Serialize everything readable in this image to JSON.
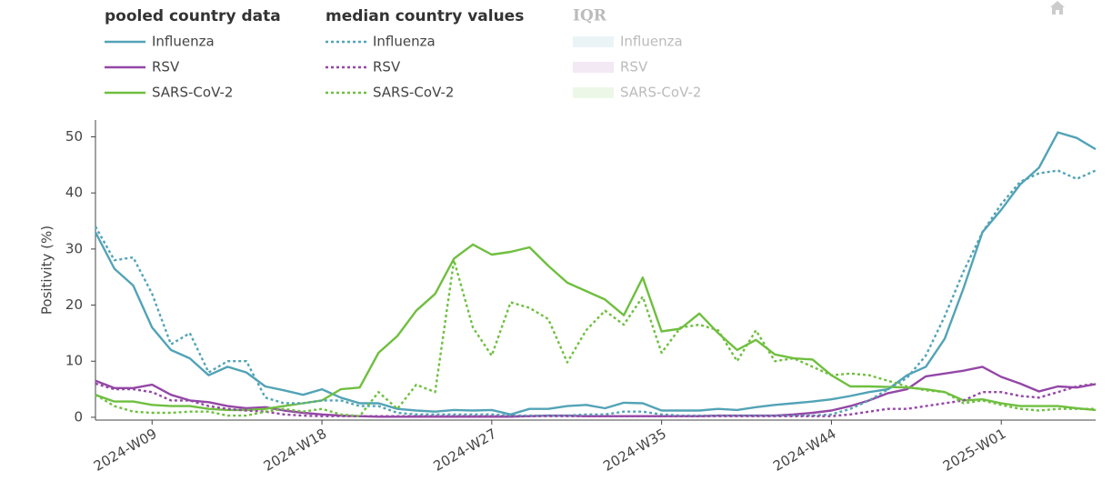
{
  "chart_data": {
    "type": "line",
    "ylabel": "Positivity (%)",
    "ylim": [
      -0.5,
      53
    ],
    "yticks": [
      0,
      10,
      20,
      30,
      40,
      50
    ],
    "grid": false,
    "categories": [
      null,
      null,
      null,
      "2024-W09",
      null,
      null,
      null,
      null,
      null,
      null,
      null,
      null,
      "2024-W18",
      null,
      null,
      null,
      null,
      null,
      null,
      null,
      null,
      "2024-W27",
      null,
      null,
      null,
      null,
      null,
      null,
      null,
      null,
      "2024-W35",
      null,
      null,
      null,
      null,
      null,
      null,
      null,
      null,
      "2024-W44",
      null,
      null,
      null,
      null,
      null,
      null,
      null,
      null,
      "2025-W01",
      null,
      null,
      null,
      null,
      null
    ],
    "groups": [
      {
        "title": "pooled country data",
        "dash": "solid",
        "series": [
          {
            "name": "Influenza",
            "color": "#52a3b6",
            "values": [
              33,
              26.5,
              23.5,
              16,
              12,
              10.5,
              7.5,
              9,
              8,
              5.5,
              4.8,
              4,
              5,
              3.5,
              2.5,
              2.5,
              1.5,
              1.2,
              1,
              1.3,
              1.2,
              1.3,
              0.5,
              1.5,
              1.5,
              2,
              2.2,
              1.6,
              2.6,
              2.5,
              1.2,
              1.2,
              1.2,
              1.5,
              1.3,
              1.8,
              2.2,
              2.5,
              2.8,
              3.2,
              3.8,
              4.5,
              5,
              7.5,
              9,
              14,
              23,
              33,
              37,
              41.5,
              44.5,
              50.8,
              49.8,
              47.8
            ]
          },
          {
            "name": "RSV",
            "color": "#9447a6",
            "values": [
              6.5,
              5.2,
              5.2,
              5.8,
              4,
              3,
              2.7,
              2,
              1.6,
              1.8,
              1.2,
              0.8,
              0.5,
              0.3,
              0.2,
              0.1,
              0.1,
              0.1,
              0.1,
              0.1,
              0.1,
              0.1,
              0.1,
              0.2,
              0.3,
              0.3,
              0.2,
              0.2,
              0.2,
              0.2,
              0.2,
              0.2,
              0.2,
              0.3,
              0.3,
              0.3,
              0.3,
              0.5,
              0.8,
              1.2,
              2,
              3,
              4.3,
              5,
              7.3,
              7.8,
              8.3,
              9,
              7.2,
              6,
              4.6,
              5.5,
              5.3,
              5.9
            ]
          },
          {
            "name": "SARS-CoV-2",
            "color": "#6fbf3f",
            "values": [
              4,
              2.8,
              2.8,
              2.2,
              2,
              2,
              1.5,
              1.3,
              1.3,
              1.5,
              2,
              2.5,
              3,
              5,
              5.3,
              11.5,
              14.5,
              19,
              22,
              28.3,
              30.8,
              29,
              29.5,
              30.3,
              27,
              24,
              22.5,
              21,
              18.2,
              24.9,
              15.3,
              15.8,
              18.5,
              15,
              12,
              13.8,
              11.2,
              10.5,
              10.3,
              7.5,
              5.5,
              5.5,
              5.4,
              5.3,
              5,
              4.5,
              3,
              3.2,
              2.5,
              2,
              2,
              2,
              1.6,
              1.3
            ]
          }
        ]
      },
      {
        "title": "median country values",
        "dash": "dot",
        "series": [
          {
            "name": "Influenza",
            "color": "#52a3b6",
            "values": [
              34,
              28,
              28.5,
              22,
              13,
              15,
              8,
              10,
              10,
              3.5,
              2.5,
              2.5,
              3,
              3,
              2,
              2,
              0.8,
              0.5,
              0.5,
              0.5,
              0.5,
              0.5,
              0.3,
              0.3,
              0.3,
              0.3,
              0.5,
              0.5,
              1,
              1,
              0.5,
              0.3,
              0.3,
              0.3,
              0.3,
              0.3,
              0.3,
              0.3,
              0.3,
              0.5,
              1.5,
              3,
              5,
              7,
              11,
              18,
              26,
              33,
              38,
              42,
              43.5,
              44,
              42.5,
              44
            ]
          },
          {
            "name": "RSV",
            "color": "#9447a6",
            "values": [
              6,
              5,
              5,
              4.5,
              3,
              3,
              2,
              1.5,
              1.2,
              1,
              0.5,
              0.3,
              0.2,
              0.2,
              0.2,
              0.2,
              0.2,
              0.2,
              0.2,
              0.2,
              0.2,
              0.2,
              0.2,
              0.2,
              0.2,
              0.2,
              0.2,
              0.2,
              0.2,
              0.2,
              0.2,
              0.2,
              0.2,
              0.2,
              0.2,
              0.2,
              0.2,
              0.2,
              0.2,
              0.2,
              0.5,
              1,
              1.5,
              1.5,
              2,
              2.5,
              3,
              4.5,
              4.5,
              3.8,
              3.5,
              4.5,
              5.5,
              6
            ]
          },
          {
            "name": "SARS-CoV-2",
            "color": "#6fbf3f",
            "values": [
              4,
              2,
              1,
              0.8,
              0.8,
              1,
              1,
              0.3,
              0.3,
              1,
              1.5,
              1,
              1.5,
              0.5,
              0.2,
              4.5,
              1.5,
              5.8,
              4.5,
              28,
              16,
              11,
              20.5,
              19.5,
              17.5,
              9.8,
              15.5,
              19,
              16.5,
              21.5,
              11.5,
              16,
              16.5,
              15.5,
              10,
              15.5,
              10,
              10.5,
              9,
              7.5,
              7.8,
              7.5,
              6.5,
              5.5,
              4.8,
              4.5,
              2.5,
              3,
              2.2,
              1.5,
              1.2,
              1.5,
              1.5,
              1.5
            ]
          }
        ]
      },
      {
        "title": "IQR",
        "dash": "band",
        "series": [
          {
            "name": "Influenza",
            "color": "#52a3b6"
          },
          {
            "name": "RSV",
            "color": "#9447a6"
          },
          {
            "name": "SARS-CoV-2",
            "color": "#6fbf3f"
          }
        ]
      }
    ]
  }
}
